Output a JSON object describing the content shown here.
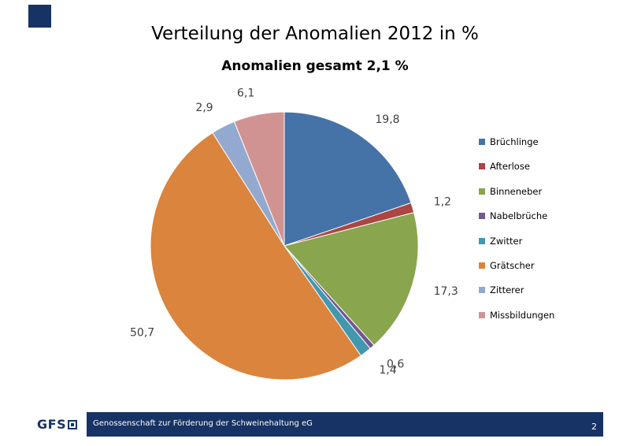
{
  "header": {
    "title": "Verteilung der Anomalien 2012 in %",
    "subtitle": "Anomalien gesamt 2,1 %"
  },
  "chart_data": {
    "type": "pie",
    "title": "Verteilung der Anomalien 2012 in %",
    "subtitle": "Anomalien gesamt 2,1 %",
    "legend_position": "right",
    "start": "top, clockwise",
    "slices": [
      {
        "name": "Brüchlinge",
        "value": 19.8,
        "label": "19,8",
        "color": "#4572A7"
      },
      {
        "name": "Afterlose",
        "value": 1.2,
        "label": "1,2",
        "color": "#AA4643"
      },
      {
        "name": "Binneneber",
        "value": 17.3,
        "label": "17,3",
        "color": "#89A54E"
      },
      {
        "name": "Nabelbrüche",
        "value": 0.6,
        "label": "0,6",
        "color": "#71588F"
      },
      {
        "name": "Zwitter",
        "value": 1.4,
        "label": "1,4",
        "color": "#4198AF"
      },
      {
        "name": "Grätscher",
        "value": 50.7,
        "label": "50,7",
        "color": "#DB843D"
      },
      {
        "name": "Zitterer",
        "value": 2.9,
        "label": "2,9",
        "color": "#93A9CF"
      },
      {
        "name": "Missbildungen",
        "value": 6.1,
        "label": "6,1",
        "color": "#D19392"
      }
    ]
  },
  "footer": {
    "logo_text": "GFS",
    "organization": "Genossenschaft zur Förderung der Schweinehaltung eG",
    "page_number": "2",
    "bar_color": "#173264"
  }
}
